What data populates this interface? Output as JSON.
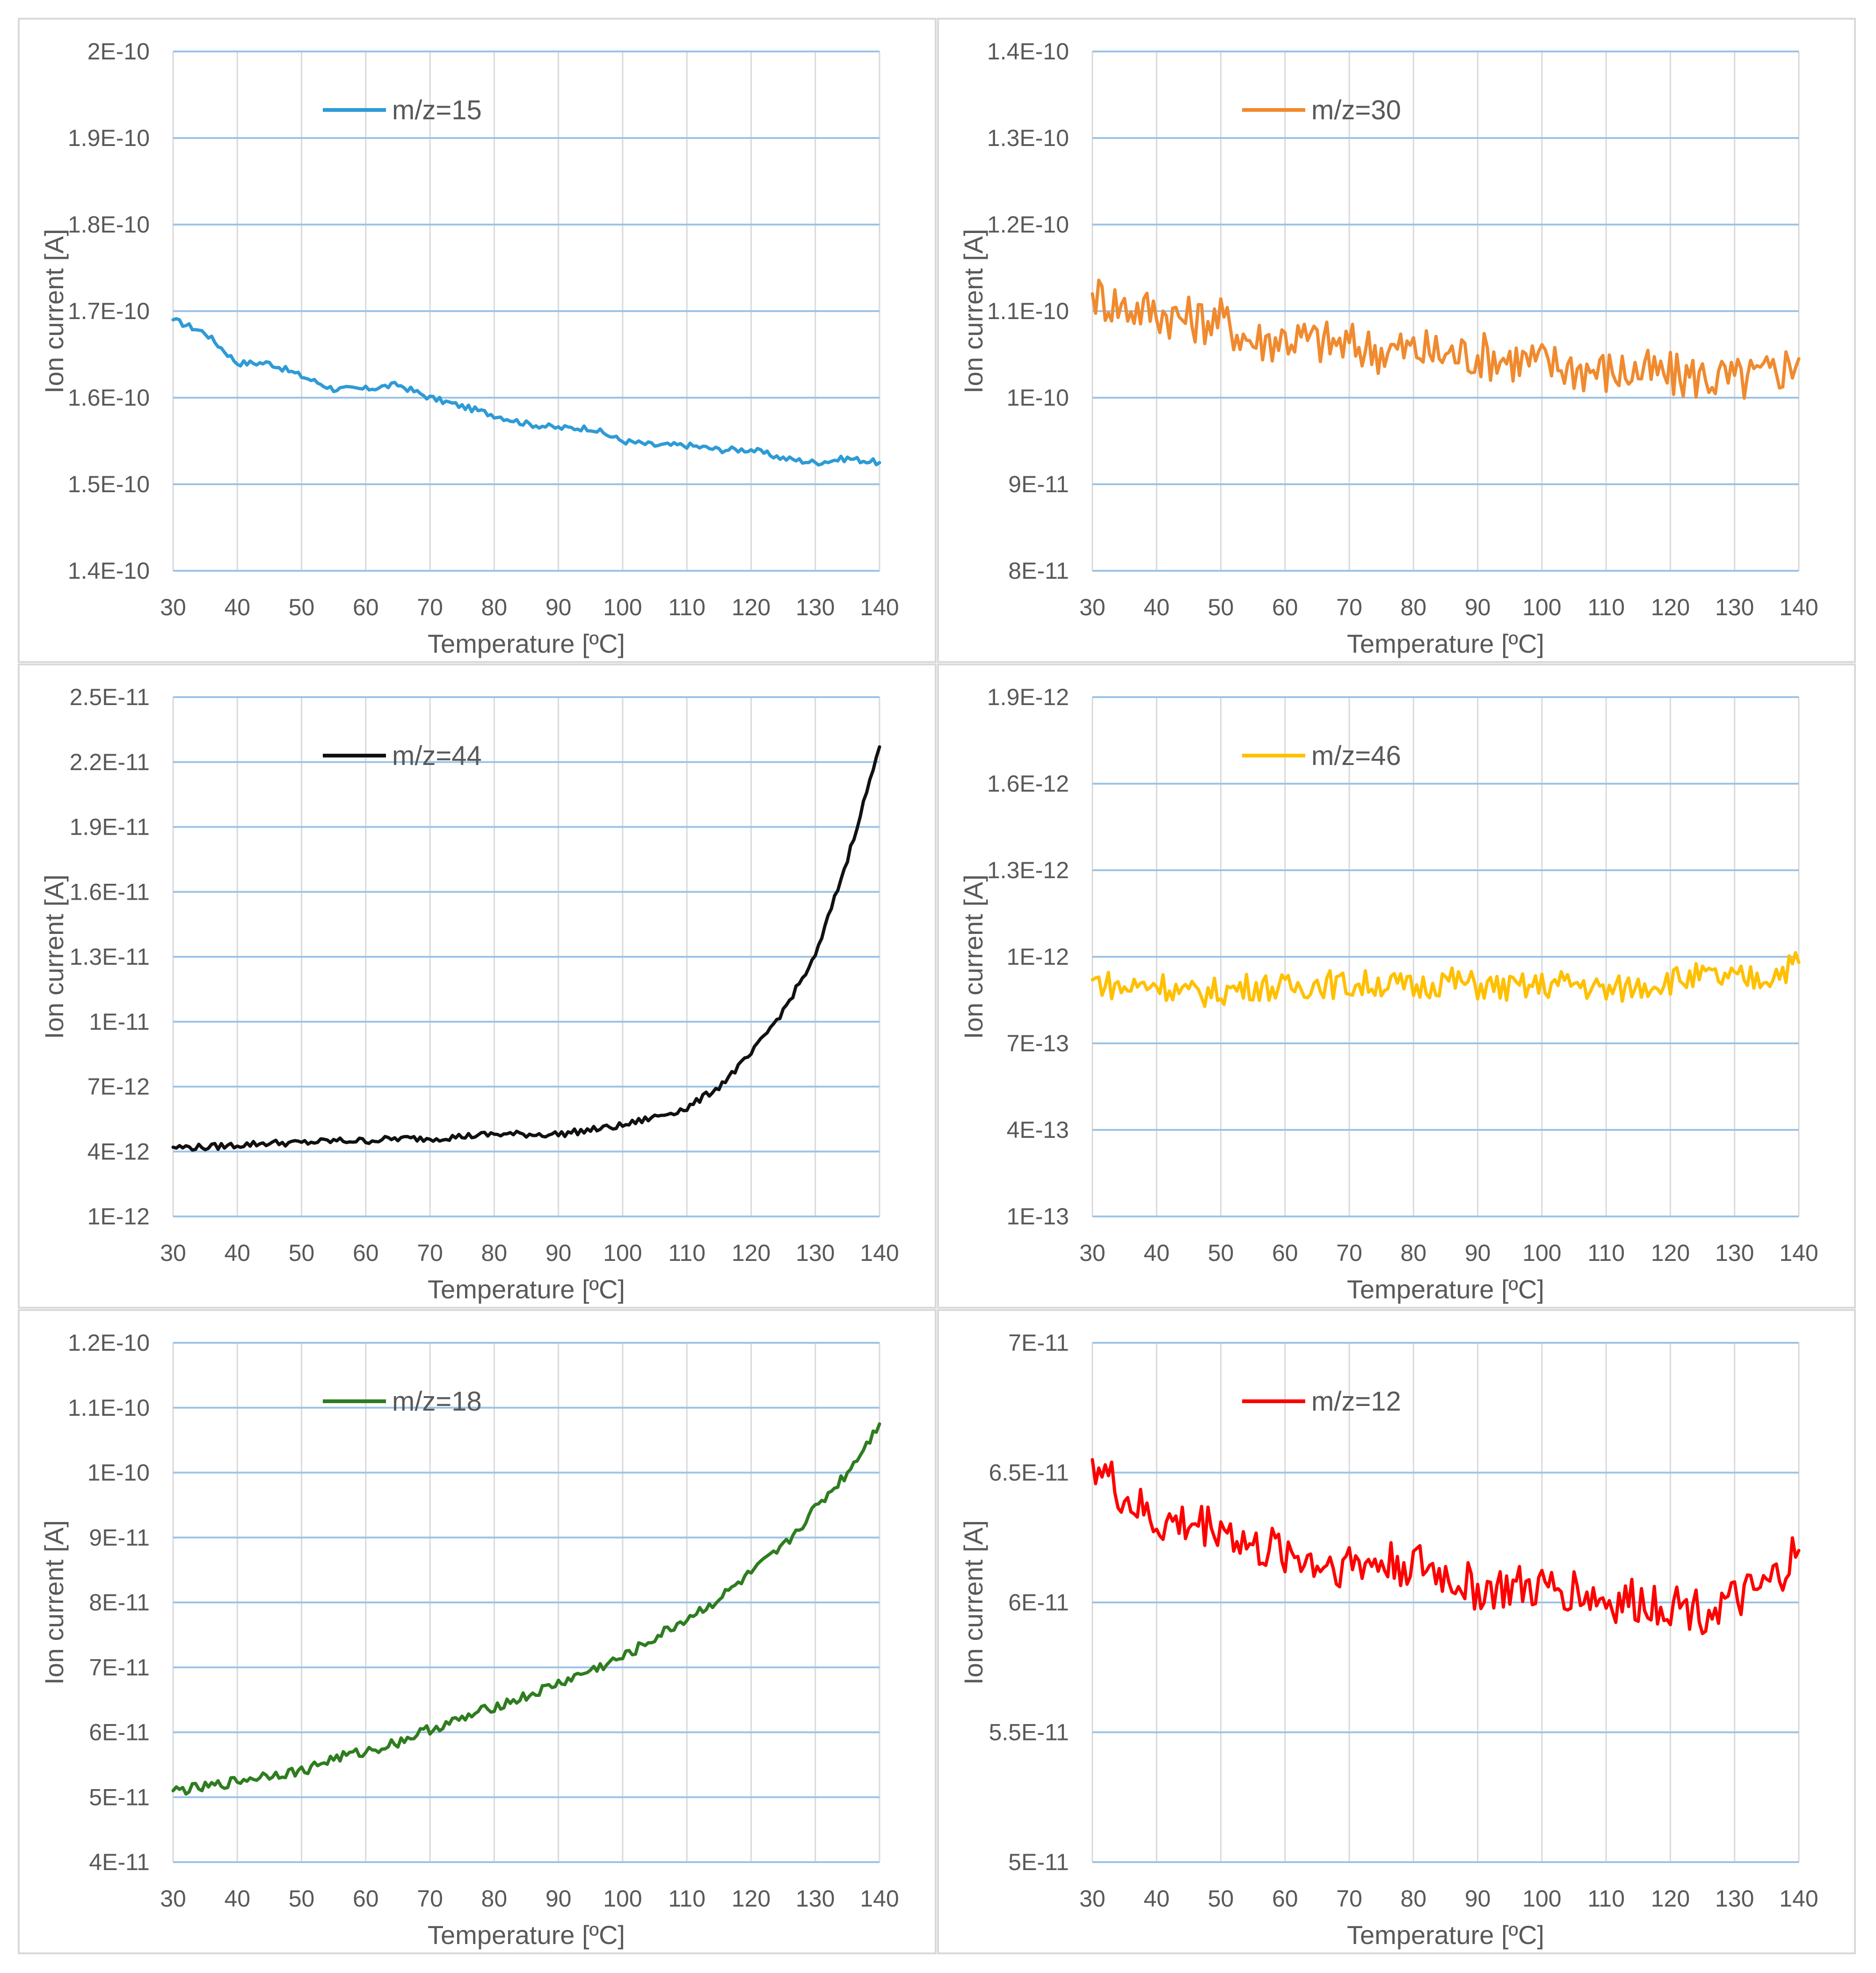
{
  "chart_data": [
    {
      "type": "line",
      "title": "",
      "xlabel": "Temperature [ºC]",
      "ylabel": "Ion current [A]",
      "xlim": [
        30,
        140
      ],
      "ylim": [
        1.4e-10,
        2e-10
      ],
      "xticks": [
        "30",
        "40",
        "50",
        "60",
        "70",
        "80",
        "90",
        "100",
        "110",
        "120",
        "130",
        "140"
      ],
      "yticks": [
        "1.4E-10",
        "1.5E-10",
        "1.6E-10",
        "1.7E-10",
        "1.8E-10",
        "1.9E-10",
        "2E-10"
      ],
      "legend": "m/z=15",
      "color": "#2e9bd6",
      "x": [
        30,
        35,
        40,
        45,
        50,
        55,
        60,
        65,
        70,
        75,
        80,
        85,
        90,
        95,
        100,
        105,
        110,
        115,
        120,
        125,
        130,
        135,
        140
      ],
      "values": [
        1.69e-10,
        1.675e-10,
        1.64e-10,
        1.64e-10,
        1.625e-10,
        1.61e-10,
        1.61e-10,
        1.615e-10,
        1.6e-10,
        1.59e-10,
        1.58e-10,
        1.57e-10,
        1.565e-10,
        1.565e-10,
        1.55e-10,
        1.545e-10,
        1.545e-10,
        1.54e-10,
        1.54e-10,
        1.53e-10,
        1.525e-10,
        1.53e-10,
        1.525e-10
      ],
      "noise": 3.5e-13
    },
    {
      "type": "line",
      "title": "",
      "xlabel": "Temperature [ºC]",
      "ylabel": "Ion current [A]",
      "xlim": [
        30,
        140
      ],
      "ylim": [
        8e-11,
        1.4e-10
      ],
      "xticks": [
        "30",
        "40",
        "50",
        "60",
        "70",
        "80",
        "90",
        "100",
        "110",
        "120",
        "130",
        "140"
      ],
      "yticks": [
        "8E-11",
        "9E-11",
        "1E-10",
        "1.1E-10",
        "1.2E-10",
        "1.3E-10",
        "1.4E-10"
      ],
      "legend": "m/z=30",
      "color": "#f08a2f",
      "x": [
        30,
        35,
        40,
        45,
        50,
        55,
        60,
        65,
        70,
        75,
        80,
        85,
        90,
        95,
        100,
        105,
        110,
        115,
        120,
        125,
        130,
        135,
        140
      ],
      "values": [
        1.12e-10,
        1.105e-10,
        1.1e-10,
        1.09e-10,
        1.09e-10,
        1.065e-10,
        1.07e-10,
        1.065e-10,
        1.06e-10,
        1.055e-10,
        1.055e-10,
        1.05e-10,
        1.05e-10,
        1.045e-10,
        1.04e-10,
        1.035e-10,
        1.03e-10,
        1.03e-10,
        1.025e-10,
        1.025e-10,
        1.02e-10,
        1.025e-10,
        1.045e-10
      ],
      "noise": 2.8e-12
    },
    {
      "type": "line",
      "title": "",
      "xlabel": "Temperature [ºC]",
      "ylabel": "Ion current [A]",
      "xlim": [
        30,
        140
      ],
      "ylim": [
        1e-12,
        2.5e-11
      ],
      "xticks": [
        "30",
        "40",
        "50",
        "60",
        "70",
        "80",
        "90",
        "100",
        "110",
        "120",
        "130",
        "140"
      ],
      "yticks": [
        "1E-12",
        "4E-12",
        "7E-12",
        "1E-11",
        "1.3E-11",
        "1.6E-11",
        "1.9E-11",
        "2.2E-11",
        "2.5E-11"
      ],
      "legend": "m/z=44",
      "color": "#111111",
      "x": [
        30,
        35,
        40,
        45,
        50,
        55,
        60,
        65,
        70,
        75,
        80,
        85,
        90,
        95,
        100,
        105,
        110,
        115,
        120,
        125,
        130,
        135,
        140
      ],
      "values": [
        4.2e-12,
        4.2e-12,
        4.3e-12,
        4.4e-12,
        4.4e-12,
        4.5e-12,
        4.5e-12,
        4.6e-12,
        4.6e-12,
        4.7e-12,
        4.8e-12,
        4.8e-12,
        4.8e-12,
        5e-12,
        5.2e-12,
        5.6e-12,
        6e-12,
        7e-12,
        8.5e-12,
        1.05e-11,
        1.3e-11,
        1.75e-11,
        2.27e-11
      ],
      "noise": 1.5e-13
    },
    {
      "type": "line",
      "title": "",
      "xlabel": "Temperature [ºC]",
      "ylabel": "Ion current [A]",
      "xlim": [
        30,
        140
      ],
      "ylim": [
        1e-13,
        1.9e-12
      ],
      "xticks": [
        "30",
        "40",
        "50",
        "60",
        "70",
        "80",
        "90",
        "100",
        "110",
        "120",
        "130",
        "140"
      ],
      "yticks": [
        "1E-13",
        "4E-13",
        "7E-13",
        "1E-12",
        "1.3E-12",
        "1.6E-12",
        "1.9E-12"
      ],
      "legend": "m/z=46",
      "color": "#ffc000",
      "x": [
        30,
        35,
        40,
        45,
        50,
        55,
        60,
        65,
        70,
        75,
        80,
        85,
        90,
        95,
        100,
        105,
        110,
        115,
        120,
        125,
        130,
        135,
        140
      ],
      "values": [
        9.2e-13,
        8.9e-13,
        9.1e-13,
        8.7e-13,
        8.8e-13,
        9e-13,
        8.9e-13,
        9.1e-13,
        9e-13,
        9.1e-13,
        8.9e-13,
        9.2e-13,
        9e-13,
        8.9e-13,
        9e-13,
        9.1e-13,
        8.8e-13,
        9e-13,
        9.2e-13,
        9.3e-13,
        9.2e-13,
        9.3e-13,
        9.8e-13
      ],
      "noise": 5e-14
    },
    {
      "type": "line",
      "title": "",
      "xlabel": "Temperature [ºC]",
      "ylabel": "Ion current [A]",
      "xlim": [
        30,
        140
      ],
      "ylim": [
        4e-11,
        1.2e-10
      ],
      "xticks": [
        "30",
        "40",
        "50",
        "60",
        "70",
        "80",
        "90",
        "100",
        "110",
        "120",
        "130",
        "140"
      ],
      "yticks": [
        "4E-11",
        "5E-11",
        "6E-11",
        "7E-11",
        "8E-11",
        "9E-11",
        "1E-10",
        "1.1E-10",
        "1.2E-10"
      ],
      "legend": "m/z=18",
      "color": "#2e7d1f",
      "x": [
        30,
        35,
        40,
        45,
        50,
        55,
        60,
        65,
        70,
        75,
        80,
        85,
        90,
        95,
        100,
        105,
        110,
        115,
        120,
        125,
        130,
        135,
        140
      ],
      "values": [
        5.1e-11,
        5.15e-11,
        5.25e-11,
        5.35e-11,
        5.4e-11,
        5.6e-11,
        5.7e-11,
        5.85e-11,
        6.05e-11,
        6.2e-11,
        6.4e-11,
        6.55e-11,
        6.75e-11,
        6.95e-11,
        7.15e-11,
        7.45e-11,
        7.75e-11,
        8.05e-11,
        8.45e-11,
        8.85e-11,
        9.45e-11,
        1e-10,
        1.075e-10
      ],
      "noise": 8e-13
    },
    {
      "type": "line",
      "title": "",
      "xlabel": "Temperature [ºC]",
      "ylabel": "Ion current [A]",
      "xlim": [
        30,
        140
      ],
      "ylim": [
        5e-11,
        7e-11
      ],
      "xticks": [
        "30",
        "40",
        "50",
        "60",
        "70",
        "80",
        "90",
        "100",
        "110",
        "120",
        "130",
        "140"
      ],
      "yticks": [
        "5E-11",
        "5.5E-11",
        "6E-11",
        "6.5E-11",
        "7E-11"
      ],
      "legend": "m/z=12",
      "color": "#ff0000",
      "x": [
        30,
        35,
        40,
        45,
        50,
        55,
        60,
        65,
        70,
        75,
        80,
        85,
        90,
        95,
        100,
        105,
        110,
        115,
        120,
        125,
        130,
        135,
        140
      ],
      "values": [
        6.55e-11,
        6.4e-11,
        6.3e-11,
        6.3e-11,
        6.3e-11,
        6.2e-11,
        6.2e-11,
        6.15e-11,
        6.15e-11,
        6.15e-11,
        6.15e-11,
        6.1e-11,
        6.05e-11,
        6.05e-11,
        6.05e-11,
        6.05e-11,
        6e-11,
        6e-11,
        6e-11,
        5.97e-11,
        6e-11,
        6.05e-11,
        6.2e-11
      ],
      "noise": 9e-13
    }
  ]
}
